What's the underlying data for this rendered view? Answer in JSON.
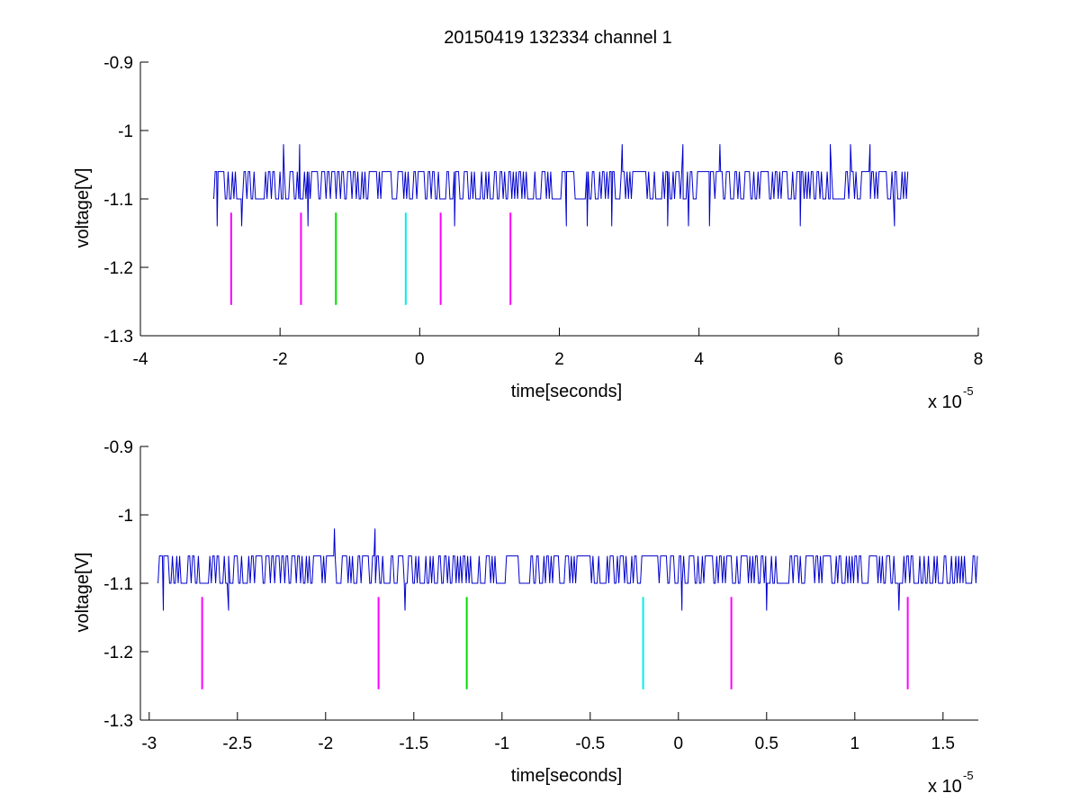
{
  "title": "20150419 132334 channel 1",
  "colors": {
    "trace": "#0000cc",
    "magenta": "#ff00ff",
    "green": "#00dd00",
    "cyan": "#00eeee"
  },
  "chart_data": [
    {
      "type": "line",
      "xlabel": "time[seconds]",
      "ylabel": "voltage[V]",
      "x_multiplier_label": "x 10",
      "x_multiplier_exponent": "-5",
      "xlim": [
        -4,
        8
      ],
      "ylim": [
        -1.3,
        -0.9
      ],
      "x_unit_scale": 1e-05,
      "xticks": [
        -4,
        -2,
        0,
        2,
        4,
        6,
        8
      ],
      "xtick_labels": [
        "-4",
        "-2",
        "0",
        "2",
        "4",
        "6",
        "8"
      ],
      "yticks": [
        -1.3,
        -1.2,
        -1.1,
        -1.0,
        -0.9
      ],
      "ytick_labels": [
        "-1.3",
        "-1.2",
        "-1.1",
        "-1",
        "-0.9"
      ],
      "series": [
        {
          "style": "noisy-square",
          "x_range": [
            -2.95,
            7.0
          ],
          "baseline": -1.1,
          "high": -1.06,
          "spikes_up": [
            [
              -1.95,
              -1.02
            ],
            [
              -1.72,
              -1.02
            ],
            [
              2.9,
              -1.02
            ],
            [
              3.77,
              -1.02
            ],
            [
              4.3,
              -1.02
            ],
            [
              5.88,
              -1.02
            ],
            [
              6.17,
              -1.02
            ],
            [
              6.45,
              -1.02
            ]
          ],
          "spikes_down": [
            [
              -2.9,
              -1.14
            ],
            [
              -2.55,
              -1.14
            ],
            [
              -1.6,
              -1.14
            ],
            [
              0.5,
              -1.14
            ],
            [
              2.1,
              -1.14
            ],
            [
              2.4,
              -1.14
            ],
            [
              2.75,
              -1.14
            ],
            [
              3.55,
              -1.14
            ],
            [
              3.85,
              -1.14
            ],
            [
              4.15,
              -1.14
            ],
            [
              5.45,
              -1.14
            ],
            [
              6.8,
              -1.14
            ]
          ]
        }
      ],
      "markers": [
        {
          "x": -2.7,
          "color": "magenta",
          "y_top": -1.12,
          "y_bottom": -1.255
        },
        {
          "x": -1.7,
          "color": "magenta",
          "y_top": -1.12,
          "y_bottom": -1.255
        },
        {
          "x": -1.2,
          "color": "green",
          "y_top": -1.12,
          "y_bottom": -1.255
        },
        {
          "x": -0.2,
          "color": "cyan",
          "y_top": -1.12,
          "y_bottom": -1.255
        },
        {
          "x": 0.3,
          "color": "magenta",
          "y_top": -1.12,
          "y_bottom": -1.255
        },
        {
          "x": 1.3,
          "color": "magenta",
          "y_top": -1.12,
          "y_bottom": -1.255
        }
      ]
    },
    {
      "type": "line",
      "xlabel": "time[seconds]",
      "ylabel": "voltage[V]",
      "x_multiplier_label": "x 10",
      "x_multiplier_exponent": "-5",
      "xlim": [
        -3.05,
        1.7
      ],
      "ylim": [
        -1.3,
        -0.9
      ],
      "x_unit_scale": 1e-05,
      "xticks": [
        -3,
        -2.5,
        -2,
        -1.5,
        -1,
        -0.5,
        0,
        0.5,
        1,
        1.5
      ],
      "xtick_labels": [
        "-3",
        "-2.5",
        "-2",
        "-1.5",
        "-1",
        "-0.5",
        "0",
        "0.5",
        "1",
        "1.5"
      ],
      "yticks": [
        -1.3,
        -1.2,
        -1.1,
        -1.0,
        -0.9
      ],
      "ytick_labels": [
        "-1.3",
        "-1.2",
        "-1.1",
        "-1",
        "-0.9"
      ],
      "series": [
        {
          "style": "noisy-square",
          "x_range": [
            -2.95,
            1.7
          ],
          "baseline": -1.1,
          "high": -1.06,
          "spikes_up": [
            [
              -1.95,
              -1.02
            ],
            [
              -1.72,
              -1.02
            ]
          ],
          "spikes_down": [
            [
              -2.92,
              -1.14
            ],
            [
              -2.55,
              -1.14
            ],
            [
              -1.55,
              -1.14
            ],
            [
              0.02,
              -1.14
            ],
            [
              0.5,
              -1.14
            ],
            [
              1.25,
              -1.14
            ]
          ]
        }
      ],
      "markers": [
        {
          "x": -2.7,
          "color": "magenta",
          "y_top": -1.12,
          "y_bottom": -1.255
        },
        {
          "x": -1.7,
          "color": "magenta",
          "y_top": -1.12,
          "y_bottom": -1.255
        },
        {
          "x": -1.2,
          "color": "green",
          "y_top": -1.12,
          "y_bottom": -1.255
        },
        {
          "x": -0.2,
          "color": "cyan",
          "y_top": -1.12,
          "y_bottom": -1.255
        },
        {
          "x": 0.3,
          "color": "magenta",
          "y_top": -1.12,
          "y_bottom": -1.255
        },
        {
          "x": 1.3,
          "color": "magenta",
          "y_top": -1.12,
          "y_bottom": -1.255
        }
      ]
    }
  ]
}
